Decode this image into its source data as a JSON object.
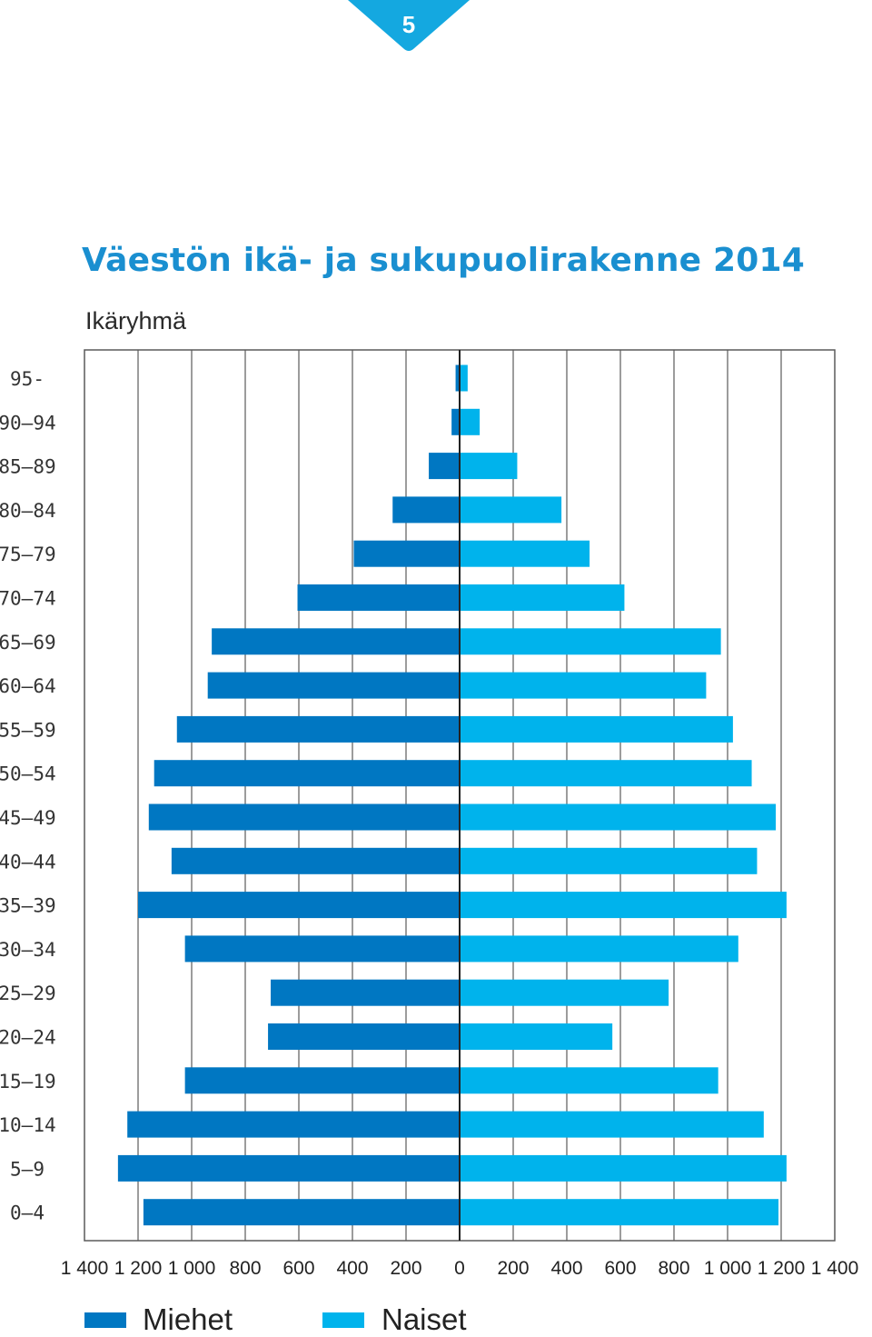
{
  "page": {
    "number": "5"
  },
  "colors": {
    "men": "#0077c2",
    "women": "#00b3ec",
    "title": "#1a8fd0",
    "tab": "#14a8e0"
  },
  "chart_data": {
    "type": "bar",
    "orientation": "horizontal",
    "subtype": "population-pyramid",
    "title": "Väestön ikä- ja sukupuolirakenne 2014",
    "ylabel": "Ikäryhmä",
    "xlim": [
      -1400,
      1400
    ],
    "x_tick_values": [
      -1400,
      -1200,
      -1000,
      -800,
      -600,
      -400,
      -200,
      0,
      200,
      400,
      600,
      800,
      1000,
      1200,
      1400
    ],
    "x_tick_labels": [
      "1 400",
      "1 200",
      "1 000",
      "800",
      "600",
      "400",
      "200",
      "0",
      "200",
      "400",
      "600",
      "800",
      "1 000",
      "1 200",
      "1 400"
    ],
    "grid": true,
    "legend_position": "bottom",
    "categories": [
      "95-",
      "90–94",
      "85–89",
      "80–84",
      "75–79",
      "70–74",
      "65–69",
      "60–64",
      "55–59",
      "50–54",
      "45–49",
      "40–44",
      "35–39",
      "30–34",
      "25–29",
      "20–24",
      "15–19",
      "10–14",
      "5–9",
      "0–4"
    ],
    "series": [
      {
        "name": "Miehet",
        "side": "left",
        "values": [
          15,
          30,
          115,
          250,
          395,
          605,
          925,
          940,
          1055,
          1140,
          1160,
          1075,
          1200,
          1025,
          705,
          715,
          1025,
          1240,
          1275,
          1180
        ]
      },
      {
        "name": "Naiset",
        "side": "right",
        "values": [
          30,
          75,
          215,
          380,
          485,
          615,
          975,
          920,
          1020,
          1090,
          1180,
          1110,
          1220,
          1040,
          780,
          570,
          965,
          1135,
          1220,
          1190
        ]
      }
    ]
  }
}
